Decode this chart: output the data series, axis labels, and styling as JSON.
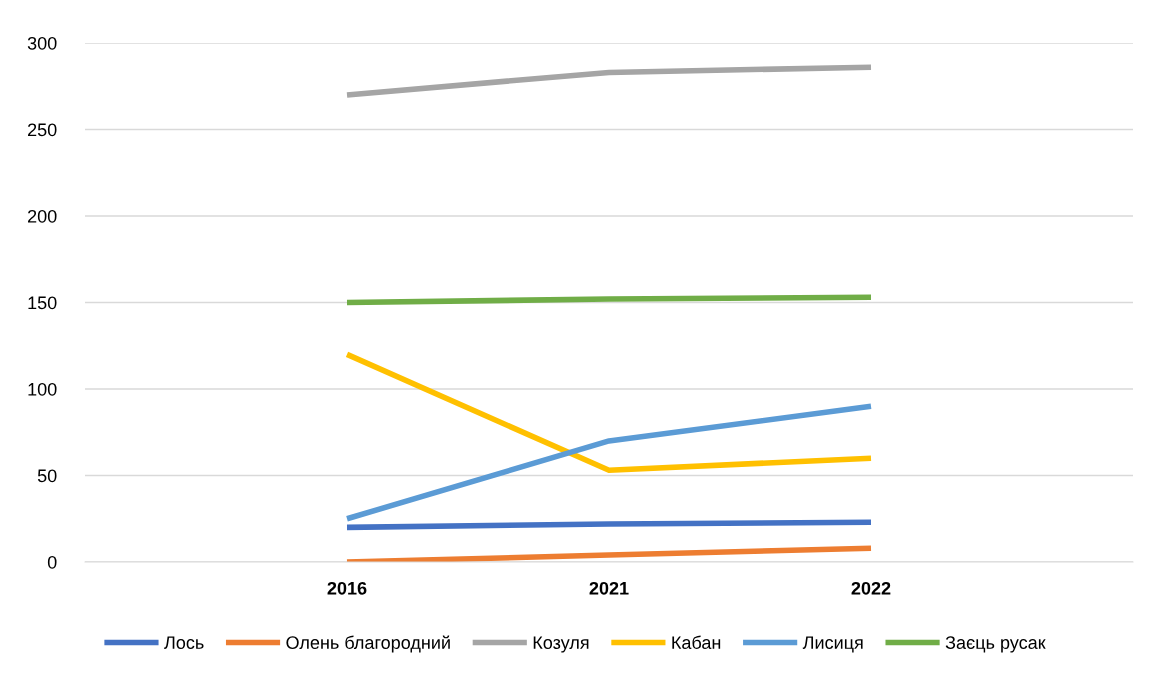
{
  "chart_data": {
    "type": "line",
    "categories": [
      "2016",
      "2021",
      "2022"
    ],
    "series": [
      {
        "name": "Лось",
        "color": "#4472c4",
        "values": [
          20,
          22,
          23
        ]
      },
      {
        "name": "Олень благородний",
        "color": "#ed7d31",
        "values": [
          0,
          4,
          8
        ]
      },
      {
        "name": "Козуля",
        "color": "#a5a5a5",
        "values": [
          270,
          283,
          286
        ]
      },
      {
        "name": "Кабан",
        "color": "#ffc000",
        "values": [
          120,
          53,
          60
        ]
      },
      {
        "name": "Лисиця",
        "color": "#5b9bd5",
        "values": [
          25,
          70,
          90
        ]
      },
      {
        "name": "Заєць русак",
        "color": "#70ad47",
        "values": [
          150,
          152,
          153
        ]
      }
    ],
    "ylim": [
      0,
      300
    ],
    "yticks": [
      0,
      50,
      100,
      150,
      200,
      250,
      300
    ],
    "grid": "y",
    "legend": "bottom",
    "marker": "none",
    "line_style": "solid"
  }
}
